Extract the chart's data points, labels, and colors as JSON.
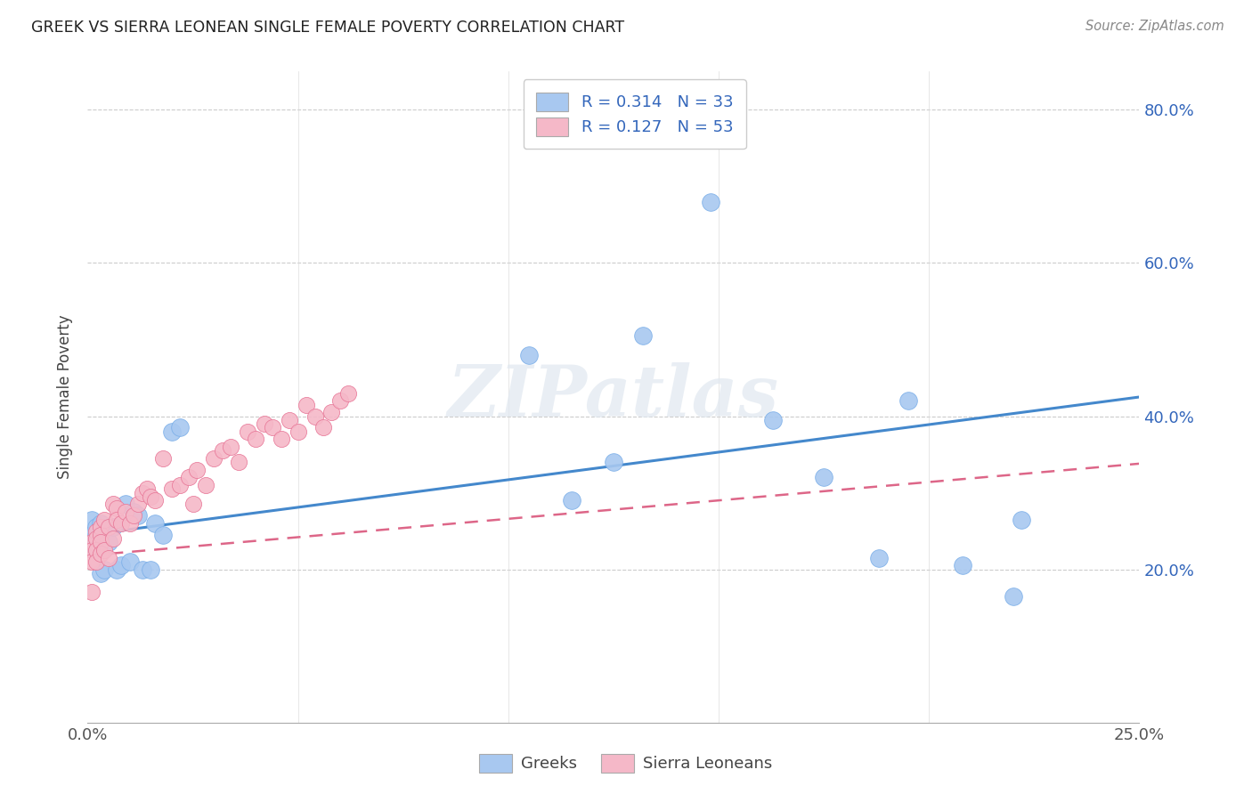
{
  "title": "GREEK VS SIERRA LEONEAN SINGLE FEMALE POVERTY CORRELATION CHART",
  "source": "Source: ZipAtlas.com",
  "ylabel": "Single Female Poverty",
  "xlim": [
    0.0,
    0.25
  ],
  "ylim": [
    0.0,
    0.85
  ],
  "ytick_labels": [
    "20.0%",
    "40.0%",
    "60.0%",
    "80.0%"
  ],
  "ytick_values": [
    0.2,
    0.4,
    0.6,
    0.8
  ],
  "watermark_text": "ZIPatlas",
  "greek_color": "#a8c8f0",
  "greek_edge": "#7aaee8",
  "sierra_color": "#f5b8c8",
  "sierra_edge": "#e87898",
  "trend_greek_color": "#4488cc",
  "trend_sierra_color": "#dd6688",
  "R_greek": 0.314,
  "N_greek": 33,
  "R_sierra": 0.127,
  "N_sierra": 53,
  "legend_label_color": "#3366bb",
  "greek_trend_intercept": 0.245,
  "greek_trend_slope": 0.72,
  "sierra_trend_intercept": 0.218,
  "sierra_trend_slope": 0.48,
  "greeks_x": [
    0.001,
    0.001,
    0.002,
    0.002,
    0.003,
    0.003,
    0.004,
    0.005,
    0.006,
    0.007,
    0.008,
    0.009,
    0.01,
    0.011,
    0.012,
    0.013,
    0.015,
    0.016,
    0.018,
    0.02,
    0.022,
    0.105,
    0.115,
    0.125,
    0.132,
    0.148,
    0.163,
    0.175,
    0.188,
    0.195,
    0.208,
    0.22,
    0.222
  ],
  "greeks_y": [
    0.265,
    0.245,
    0.255,
    0.225,
    0.26,
    0.195,
    0.2,
    0.235,
    0.255,
    0.2,
    0.205,
    0.285,
    0.21,
    0.275,
    0.27,
    0.2,
    0.2,
    0.26,
    0.245,
    0.38,
    0.385,
    0.48,
    0.29,
    0.34,
    0.505,
    0.68,
    0.395,
    0.32,
    0.215,
    0.42,
    0.205,
    0.165,
    0.265
  ],
  "sierra_x": [
    0.001,
    0.001,
    0.001,
    0.001,
    0.002,
    0.002,
    0.002,
    0.002,
    0.003,
    0.003,
    0.003,
    0.003,
    0.004,
    0.004,
    0.005,
    0.005,
    0.006,
    0.006,
    0.007,
    0.007,
    0.008,
    0.009,
    0.01,
    0.011,
    0.012,
    0.013,
    0.014,
    0.015,
    0.016,
    0.018,
    0.02,
    0.022,
    0.024,
    0.025,
    0.026,
    0.028,
    0.03,
    0.032,
    0.034,
    0.036,
    0.038,
    0.04,
    0.042,
    0.044,
    0.046,
    0.048,
    0.05,
    0.052,
    0.054,
    0.056,
    0.058,
    0.06,
    0.062
  ],
  "sierra_y": [
    0.235,
    0.225,
    0.21,
    0.17,
    0.25,
    0.24,
    0.225,
    0.21,
    0.255,
    0.245,
    0.235,
    0.22,
    0.265,
    0.225,
    0.255,
    0.215,
    0.285,
    0.24,
    0.28,
    0.265,
    0.26,
    0.275,
    0.26,
    0.27,
    0.285,
    0.3,
    0.305,
    0.295,
    0.29,
    0.345,
    0.305,
    0.31,
    0.32,
    0.285,
    0.33,
    0.31,
    0.345,
    0.355,
    0.36,
    0.34,
    0.38,
    0.37,
    0.39,
    0.385,
    0.37,
    0.395,
    0.38,
    0.415,
    0.4,
    0.385,
    0.405,
    0.42,
    0.43
  ]
}
